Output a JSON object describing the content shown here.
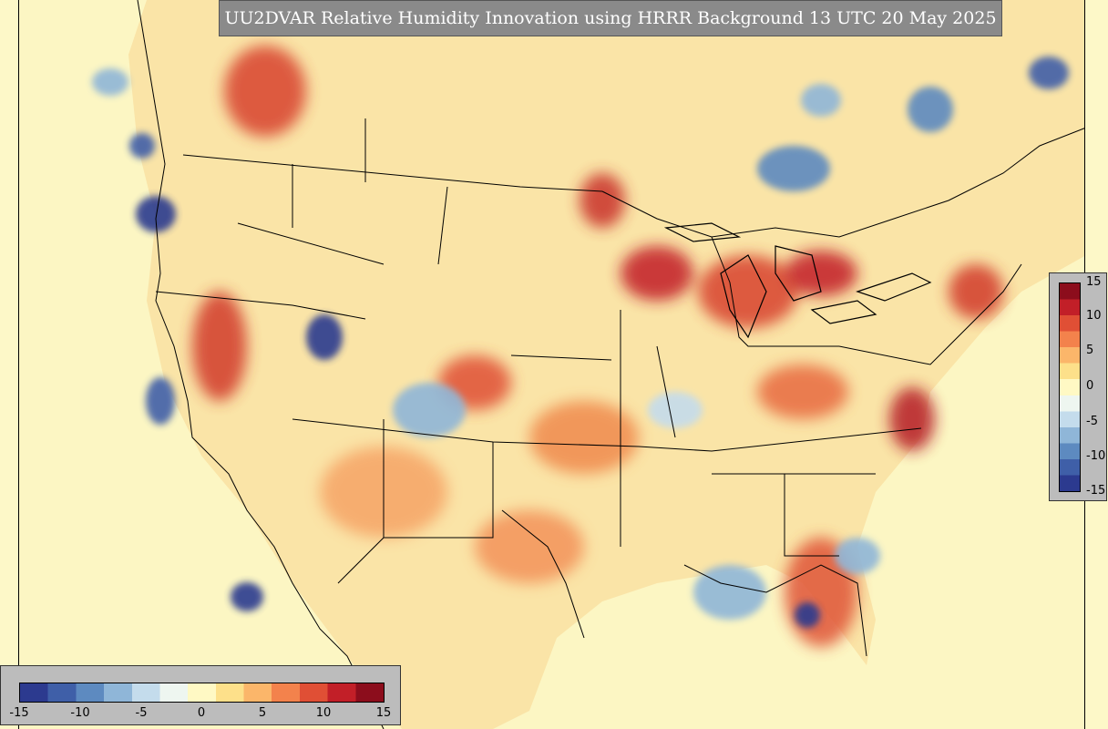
{
  "title": "UU2DVAR Relative Humidity Innovation using HRRR Background 13 UTC 20 May 2025",
  "colorbar_right": {
    "ticks": [
      "15",
      "10",
      "5",
      "0",
      "-5",
      "-10",
      "-15"
    ]
  },
  "colorbar_bottom": {
    "ticks": [
      "-15",
      "-10",
      "-5",
      "0",
      "5",
      "10",
      "15"
    ]
  },
  "scale": {
    "min": -15,
    "max": 15,
    "colors": [
      "#2c3a8f",
      "#3f5fa8",
      "#5d8ac0",
      "#8fb6d8",
      "#c4dcec",
      "#eef6f0",
      "#fff9c4",
      "#fde08a",
      "#fbb66a",
      "#f3824c",
      "#e04f35",
      "#c21f28",
      "#8c0d1c"
    ]
  }
}
